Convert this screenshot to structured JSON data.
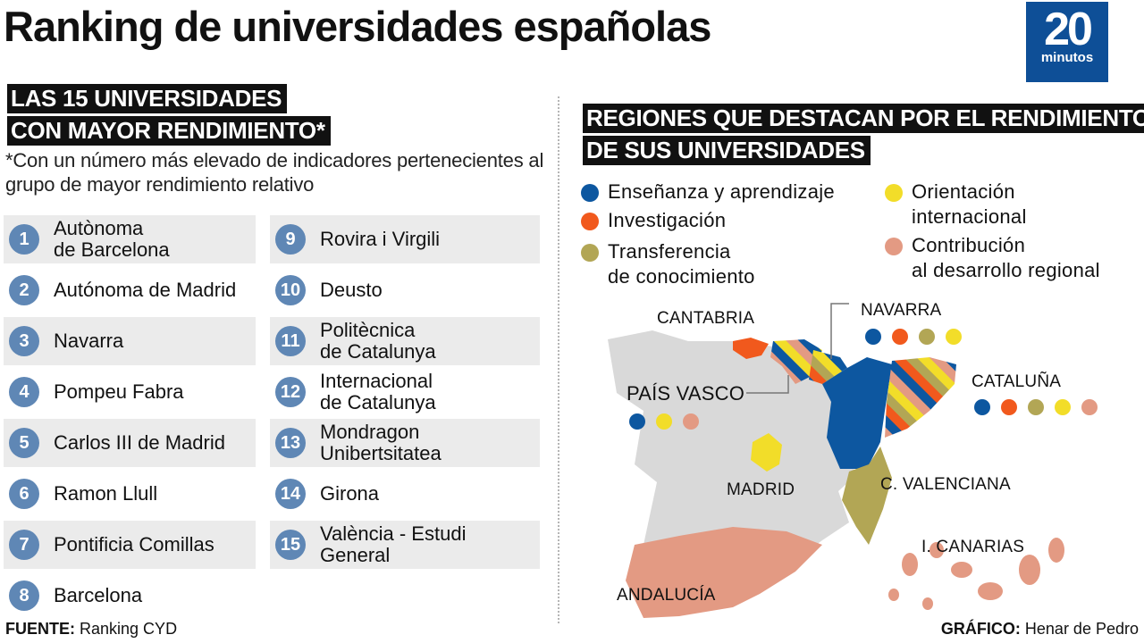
{
  "title": "Ranking de universidades españolas",
  "logo": {
    "number": "20",
    "word": "minutos"
  },
  "left_panel": {
    "heading_lines": [
      "LAS 15 UNIVERSIDADES",
      "CON MAYOR RENDIMIENTO*"
    ],
    "note": "*Con un número más elevado de indicadores pertenecientes al grupo de mayor rendimiento relativo",
    "universities": [
      {
        "rank": "1",
        "name": "Autònoma\nde Barcelona"
      },
      {
        "rank": "2",
        "name": "Autónoma de Madrid"
      },
      {
        "rank": "3",
        "name": "Navarra"
      },
      {
        "rank": "4",
        "name": "Pompeu Fabra"
      },
      {
        "rank": "5",
        "name": "Carlos III de Madrid"
      },
      {
        "rank": "6",
        "name": "Ramon Llull"
      },
      {
        "rank": "7",
        "name": "Pontificia Comillas"
      },
      {
        "rank": "8",
        "name": "Barcelona"
      },
      {
        "rank": "9",
        "name": "Rovira i Virgili"
      },
      {
        "rank": "10",
        "name": "Deusto"
      },
      {
        "rank": "11",
        "name": "Politècnica\nde Catalunya"
      },
      {
        "rank": "12",
        "name": "Internacional\nde Catalunya"
      },
      {
        "rank": "13",
        "name": "Mondragon\nUnibertsitatea"
      },
      {
        "rank": "14",
        "name": "Girona"
      },
      {
        "rank": "15",
        "name": "València - Estudi\nGeneral"
      }
    ]
  },
  "right_panel": {
    "heading_lines": [
      "REGIONES QUE DESTACAN POR EL RENDIMIENTO",
      "DE SUS UNIVERSIDADES"
    ],
    "legend": [
      {
        "label": "Enseñanza y aprendizaje",
        "color": "#0d57a0"
      },
      {
        "label": "Investigación",
        "color": "#f1591d"
      },
      {
        "label": "Transferencia\nde conocimiento",
        "color": "#b2a655"
      },
      {
        "label": "Orientación\ninternacional",
        "color": "#f2dd29"
      },
      {
        "label": "Contribución\nal desarrollo regional",
        "color": "#e39a83"
      }
    ],
    "regions": [
      {
        "name": "CANTABRIA",
        "dots": []
      },
      {
        "name": "NAVARRA",
        "dots": [
          "#0d57a0",
          "#f1591d",
          "#b2a655",
          "#f2dd29"
        ]
      },
      {
        "name": "PAÍS VASCO",
        "dots": [
          "#0d57a0",
          "#f2dd29",
          "#e39a83"
        ]
      },
      {
        "name": "CATALUÑA",
        "dots": [
          "#0d57a0",
          "#f1591d",
          "#b2a655",
          "#f2dd29",
          "#e39a83"
        ]
      },
      {
        "name": "MADRID",
        "dots": []
      },
      {
        "name": "C. VALENCIANA",
        "dots": []
      },
      {
        "name": "I. CANARIAS",
        "dots": []
      },
      {
        "name": "ANDALUCÍA",
        "dots": []
      }
    ],
    "base_map_color": "#d9d9d9"
  },
  "footer": {
    "source_label": "FUENTE:",
    "source_value": "Ranking CYD",
    "credit_label": "GRÁFICO:",
    "credit_value": "Henar de Pedro"
  }
}
